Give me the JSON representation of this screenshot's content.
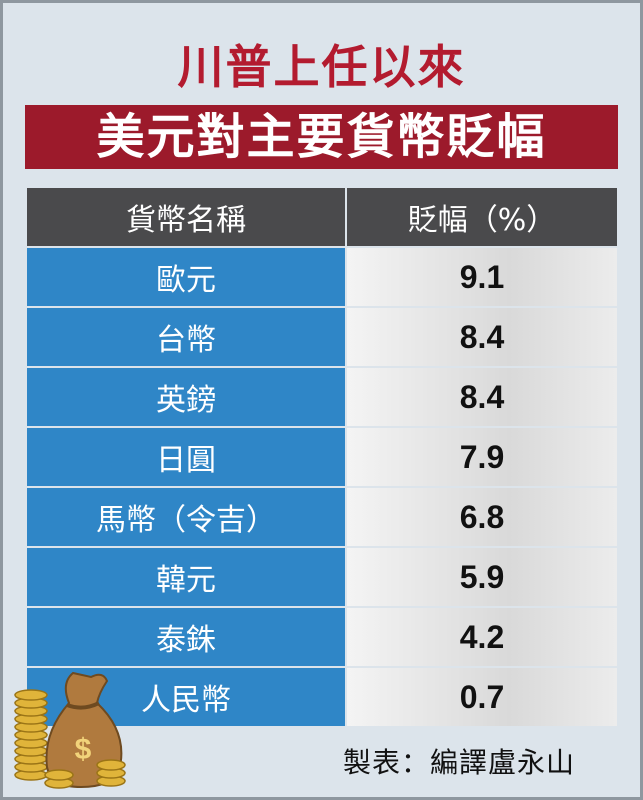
{
  "header": {
    "title_line1": "川普上任以來",
    "title_line2": "美元對主要貨幣貶幅"
  },
  "table": {
    "columns": [
      "貨幣名稱",
      "貶幅（%）"
    ],
    "rows": [
      [
        "歐元",
        9.1
      ],
      [
        "台幣",
        8.4
      ],
      [
        "英鎊",
        8.4
      ],
      [
        "日圓",
        7.9
      ],
      [
        "馬幣（令吉）",
        6.8
      ],
      [
        "韓元",
        5.9
      ],
      [
        "泰銖",
        4.2
      ],
      [
        "人民幣",
        0.7
      ]
    ]
  },
  "credit": "製表：編譯盧永山"
}
